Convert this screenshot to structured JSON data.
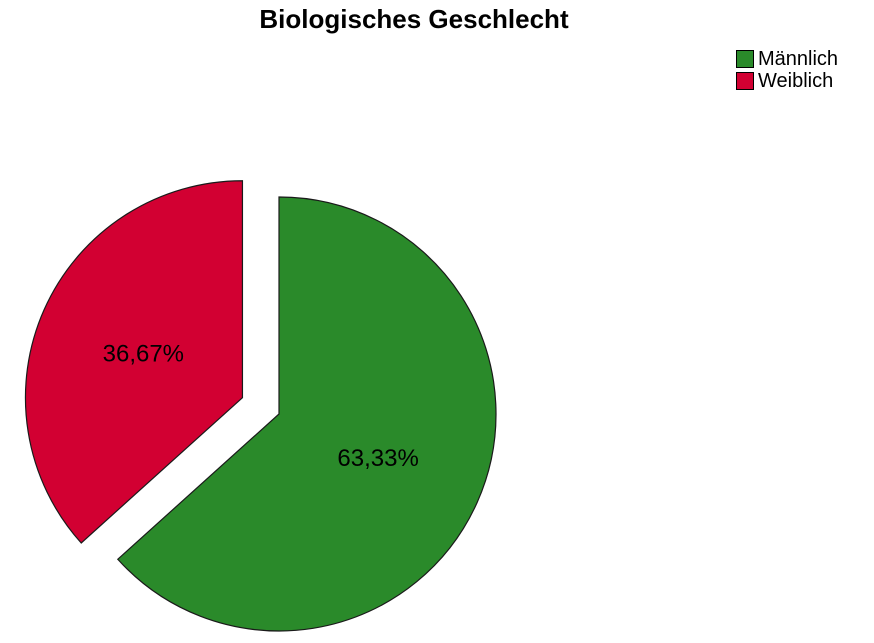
{
  "chart_data": {
    "type": "pie",
    "title": "Biologisches Geschlecht",
    "legend_position": "top-right",
    "slices": [
      {
        "name": "Männlich",
        "value": 63.33,
        "label": "63,33%",
        "color": "#2a8a2a",
        "exploded": false
      },
      {
        "name": "Weiblich",
        "value": 36.67,
        "label": "36,67%",
        "color": "#d20032",
        "exploded": true
      }
    ],
    "outline_color": "#1a1a1a"
  }
}
